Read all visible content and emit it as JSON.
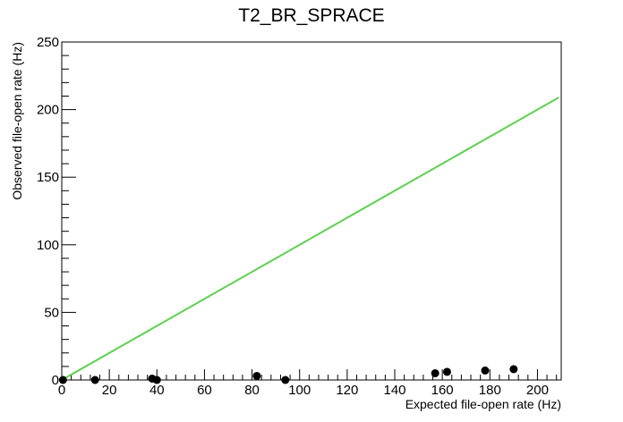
{
  "chart_data": {
    "type": "scatter",
    "title": "T2_BR_SPRACE",
    "xlabel": "Expected file-open rate (Hz)",
    "ylabel": "Observed file-open rate (Hz)",
    "xlim": [
      0,
      210
    ],
    "ylim": [
      0,
      250
    ],
    "x_ticks": [
      0,
      20,
      40,
      60,
      80,
      100,
      120,
      140,
      160,
      180,
      200
    ],
    "y_ticks": [
      0,
      50,
      100,
      150,
      200,
      250
    ],
    "grid": false,
    "points": [
      {
        "x": 0.5,
        "y": 0
      },
      {
        "x": 14,
        "y": 0
      },
      {
        "x": 38,
        "y": 1
      },
      {
        "x": 40,
        "y": 0
      },
      {
        "x": 82,
        "y": 3
      },
      {
        "x": 94,
        "y": 0
      },
      {
        "x": 157,
        "y": 5
      },
      {
        "x": 162,
        "y": 6
      },
      {
        "x": 178,
        "y": 7
      },
      {
        "x": 190,
        "y": 8
      }
    ],
    "reference_line": {
      "from": [
        0,
        0
      ],
      "to": [
        209,
        209
      ],
      "color": "#5cd14f"
    },
    "marker_color": "#000000"
  }
}
